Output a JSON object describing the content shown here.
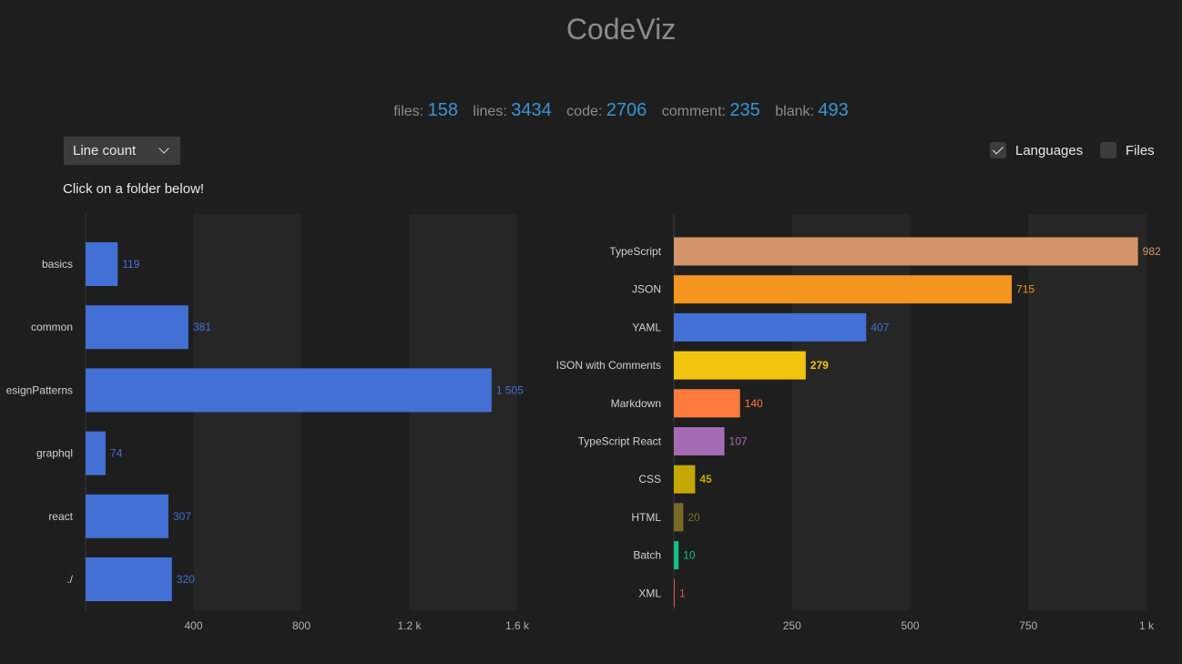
{
  "header": {
    "title": "CodeViz"
  },
  "stats": [
    {
      "label": "files:",
      "value": "158"
    },
    {
      "label": "lines:",
      "value": "3434"
    },
    {
      "label": "code:",
      "value": "2706"
    },
    {
      "label": "comment:",
      "value": "235"
    },
    {
      "label": "blank:",
      "value": "493"
    }
  ],
  "controls": {
    "metric_select": "Line count",
    "hint": "Click on a folder below!",
    "languages_label": "Languages",
    "languages_checked": true,
    "files_label": "Files",
    "files_checked": false
  },
  "chart_data": [
    {
      "type": "bar",
      "orientation": "horizontal",
      "categories": [
        "basics",
        "common",
        "esignPatterns",
        "graphql",
        "react",
        "./"
      ],
      "values": [
        119,
        381,
        1505,
        74,
        307,
        320
      ],
      "value_labels": [
        "119",
        "381",
        "1 505",
        "74",
        "307",
        "320"
      ],
      "x_ticks": [
        "400",
        "800",
        "1.2 k",
        "1.6 k"
      ],
      "x_tick_values": [
        400,
        800,
        1200,
        1600
      ],
      "xlim": [
        0,
        1600
      ],
      "color": "#4370d4"
    },
    {
      "type": "bar",
      "orientation": "horizontal",
      "categories": [
        "TypeScript",
        "JSON",
        "YAML",
        "JSON with Comments",
        "Markdown",
        "TypeScript React",
        "CSS",
        "HTML",
        "Batch",
        "XML"
      ],
      "display_labels": [
        "TypeScript",
        "JSON",
        "YAML",
        "ISON with Comments",
        "Markdown",
        "TypeScript React",
        "CSS",
        "HTML",
        "Batch",
        "XML"
      ],
      "values": [
        982,
        715,
        407,
        279,
        140,
        107,
        45,
        20,
        10,
        1
      ],
      "value_labels": [
        "982",
        "715",
        "407",
        "279",
        "140",
        "107",
        "45",
        "20",
        "10",
        "1"
      ],
      "colors": [
        "#d4956a",
        "#f3951f",
        "#4370d4",
        "#f1c40f",
        "#ff7a3d",
        "#a66bb5",
        "#c4a800",
        "#7a6a2a",
        "#12c184",
        "#e05050"
      ],
      "x_ticks": [
        "250",
        "500",
        "750",
        "1 k"
      ],
      "x_tick_values": [
        250,
        500,
        750,
        1000
      ],
      "xlim": [
        0,
        1000
      ]
    }
  ]
}
